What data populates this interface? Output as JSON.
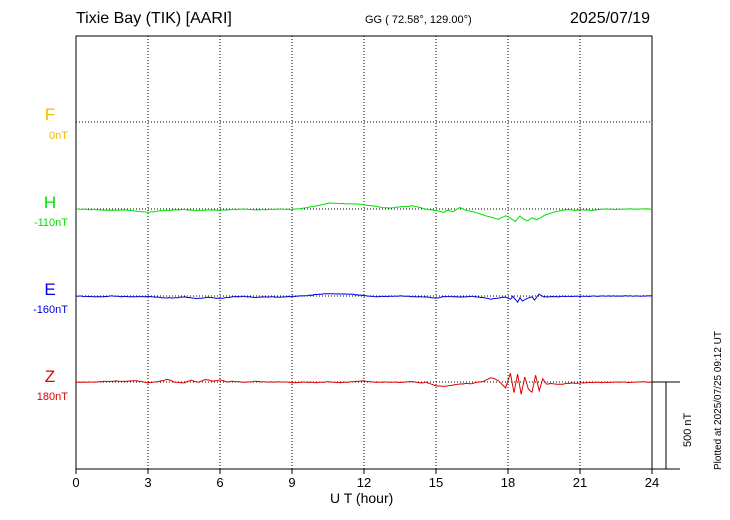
{
  "header": {
    "station": "Tixie Bay (TIK)  [AARI]",
    "coords": "GG ( 72.58°, 129.00°)",
    "date": "2025/07/19"
  },
  "footer": {
    "plotted": "Plotted at 2025/07/25 09:12 UT",
    "scale_label": "500 nT"
  },
  "chart_data": {
    "type": "line",
    "xlabel": "U T (hour)",
    "xlim": [
      0,
      24
    ],
    "xticks": [
      0,
      3,
      6,
      9,
      12,
      15,
      18,
      21,
      24
    ],
    "xtick_labels": [
      "0",
      "3",
      "6",
      "9",
      "12",
      "15",
      "18",
      "21",
      "24"
    ],
    "grid": true,
    "scale_bar_nT": 500,
    "series": [
      {
        "name": "F",
        "baseline_label": "0nT",
        "color": "#f5b800",
        "values": []
      },
      {
        "name": "H",
        "baseline_label": "-110nT",
        "color": "#00e000",
        "x": [
          0,
          0.5,
          1,
          1.5,
          2,
          2.5,
          3,
          3.5,
          4,
          4.5,
          5,
          5.5,
          6,
          6.5,
          7,
          7.5,
          8,
          8.5,
          9,
          9.5,
          10,
          10.3,
          10.6,
          11,
          11.5,
          12,
          12.5,
          13,
          13.5,
          14,
          14.3,
          14.7,
          15,
          15.3,
          15.5,
          15.7,
          16,
          16.3,
          16.6,
          17,
          17.3,
          17.6,
          17.9,
          18.1,
          18.3,
          18.5,
          18.6,
          18.8,
          19,
          19.2,
          19.4,
          19.6,
          19.9,
          20.2,
          20.5,
          20.8,
          21,
          21.5,
          22,
          22.5,
          23,
          23.5,
          24
        ],
        "y": [
          0,
          -2,
          -5,
          -8,
          -4,
          -12,
          -20,
          -10,
          -6,
          -4,
          -9,
          -5,
          -8,
          -3,
          0,
          -6,
          -3,
          0,
          -4,
          5,
          18,
          28,
          35,
          32,
          30,
          25,
          15,
          5,
          12,
          18,
          10,
          -5,
          -8,
          -20,
          -5,
          -15,
          8,
          -10,
          -18,
          -35,
          -48,
          -60,
          -38,
          -52,
          -72,
          -40,
          -55,
          -68,
          -52,
          -62,
          -45,
          -30,
          -20,
          -8,
          -3,
          -8,
          -3,
          -8,
          0,
          -2,
          0,
          0,
          0
        ]
      },
      {
        "name": "E",
        "baseline_label": "-160nT",
        "color": "#0000e0",
        "x": [
          0,
          0.5,
          1,
          1.5,
          2,
          2.5,
          3,
          3.5,
          4,
          4.5,
          5,
          5.5,
          6,
          6.5,
          7,
          7.5,
          8,
          8.5,
          9,
          9.5,
          10,
          10.5,
          11,
          11.5,
          12,
          12.5,
          13,
          13.5,
          14,
          14.5,
          15,
          15.3,
          15.6,
          16,
          16.5,
          17,
          17.3,
          17.6,
          17.9,
          18.1,
          18.2,
          18.4,
          18.5,
          18.6,
          18.8,
          19,
          19.1,
          19.3,
          19.5,
          20,
          20.5,
          21,
          22,
          23,
          24
        ],
        "y": [
          0,
          -3,
          -5,
          0,
          -4,
          -5,
          -3,
          -8,
          -12,
          -5,
          -14,
          -8,
          -14,
          -6,
          -3,
          -8,
          -5,
          -6,
          -3,
          2,
          8,
          14,
          12,
          10,
          2,
          -3,
          -2,
          0,
          -3,
          -5,
          -12,
          -5,
          -3,
          -6,
          -2,
          -10,
          -18,
          -12,
          -5,
          -20,
          -2,
          -35,
          -10,
          -28,
          -15,
          -5,
          -22,
          10,
          -5,
          -4,
          -2,
          -2,
          -1,
          0,
          0
        ]
      },
      {
        "name": "Z",
        "baseline_label": "180nT",
        "color": "#e00000",
        "x": [
          0,
          0.5,
          1,
          1.5,
          2,
          2.5,
          3,
          3.5,
          3.8,
          4.1,
          4.5,
          4.8,
          5.1,
          5.4,
          5.7,
          6,
          6.3,
          6.6,
          7,
          7.5,
          8,
          8.5,
          9,
          9.5,
          10,
          10.5,
          11,
          11.5,
          12,
          12.5,
          13,
          13.5,
          14,
          14.3,
          14.6,
          15,
          15.3,
          15.7,
          16,
          16.5,
          17,
          17.3,
          17.6,
          17.9,
          18.1,
          18.25,
          18.4,
          18.55,
          18.7,
          18.85,
          19,
          19.15,
          19.3,
          19.45,
          19.6,
          19.8,
          20.1,
          20.5,
          21,
          21.5,
          22,
          22.5,
          23,
          23.5,
          24
        ],
        "y": [
          0,
          -2,
          2,
          5,
          4,
          8,
          -5,
          4,
          15,
          0,
          -5,
          10,
          -2,
          15,
          5,
          12,
          0,
          4,
          -2,
          3,
          -1,
          2,
          -4,
          0,
          -3,
          1,
          -4,
          2,
          6,
          -2,
          0,
          -2,
          3,
          -5,
          -2,
          -22,
          -25,
          -18,
          -12,
          -8,
          5,
          25,
          8,
          -35,
          50,
          -60,
          45,
          -70,
          30,
          -40,
          -60,
          40,
          -50,
          18,
          -12,
          -8,
          -14,
          -8,
          -6,
          -2,
          -3,
          0,
          -2,
          0,
          0
        ]
      }
    ]
  }
}
